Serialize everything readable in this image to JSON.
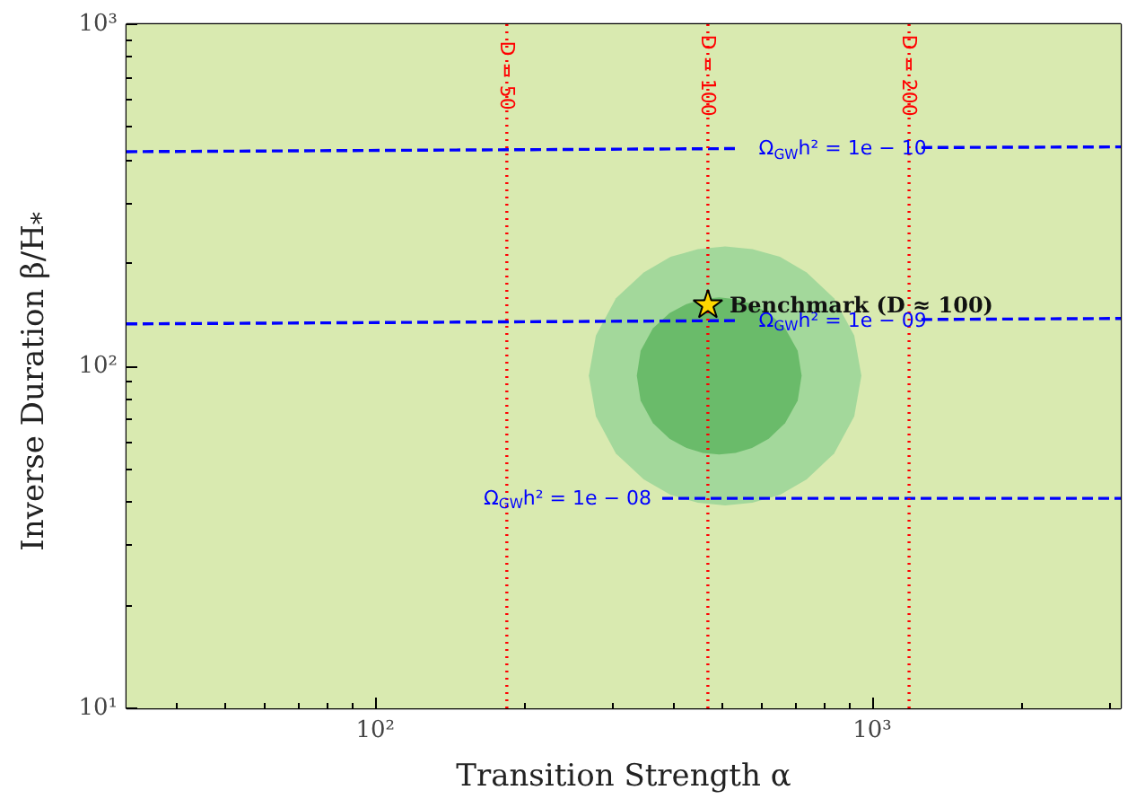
{
  "chart_data": {
    "type": "line",
    "xlabel": "Transition Strength α",
    "ylabel": "Inverse Duration β/H$_{*}$",
    "log": "xy",
    "xlim": [
      31.6,
      3162
    ],
    "ylim": [
      10,
      1000
    ],
    "xticks": [
      {
        "value": 40,
        "label": null
      },
      {
        "value": 50,
        "label": null
      },
      {
        "value": 60,
        "label": null
      },
      {
        "value": 70,
        "label": null
      },
      {
        "value": 80,
        "label": null
      },
      {
        "value": 90,
        "label": null
      },
      {
        "value": 100,
        "label": "10²"
      },
      {
        "value": 200,
        "label": null
      },
      {
        "value": 300,
        "label": null
      },
      {
        "value": 400,
        "label": null
      },
      {
        "value": 500,
        "label": null
      },
      {
        "value": 600,
        "label": null
      },
      {
        "value": 700,
        "label": null
      },
      {
        "value": 800,
        "label": null
      },
      {
        "value": 900,
        "label": null
      },
      {
        "value": 1000,
        "label": "10³"
      },
      {
        "value": 2000,
        "label": null
      },
      {
        "value": 3000,
        "label": null
      }
    ],
    "yticks": [
      {
        "value": 10,
        "label": "10¹"
      },
      {
        "value": 20,
        "label": null
      },
      {
        "value": 30,
        "label": null
      },
      {
        "value": 40,
        "label": null
      },
      {
        "value": 50,
        "label": null
      },
      {
        "value": 60,
        "label": null
      },
      {
        "value": 70,
        "label": null
      },
      {
        "value": 80,
        "label": null
      },
      {
        "value": 90,
        "label": null
      },
      {
        "value": 100,
        "label": "10²"
      },
      {
        "value": 200,
        "label": null
      },
      {
        "value": 300,
        "label": null
      },
      {
        "value": 400,
        "label": null
      },
      {
        "value": 500,
        "label": null
      },
      {
        "value": 600,
        "label": null
      },
      {
        "value": 700,
        "label": null
      },
      {
        "value": 800,
        "label": null
      },
      {
        "value": 900,
        "label": null
      },
      {
        "value": 1000,
        "label": "10³"
      }
    ],
    "bands": [
      {
        "axis": "y",
        "from": 10,
        "to": 1000,
        "color": "#d9eab0"
      }
    ],
    "series": [
      {
        "type": "area",
        "color": "#a3d89b",
        "x": [
          269,
          278,
          305,
          347,
          393,
          446,
          506,
          574,
          652,
          738,
          838,
          920,
          951,
          920,
          838,
          738,
          652,
          574,
          506,
          446,
          393,
          347,
          305,
          278
        ],
        "values": [
          93.8,
          123,
          158,
          188,
          209,
          220,
          224,
          220,
          209,
          188,
          158,
          123,
          93.8,
          71.4,
          55.6,
          46.7,
          42.1,
          39.9,
          39.2,
          39.9,
          42.1,
          46.7,
          55.6,
          71.4
        ]
      },
      {
        "type": "area",
        "color": "#6abb6a",
        "x": [
          336,
          342,
          362,
          391,
          423,
          456,
          492,
          531,
          573,
          619,
          668,
          708,
          721,
          708,
          668,
          619,
          573,
          531,
          492,
          456,
          423,
          391,
          362,
          342
        ],
        "values": [
          93.8,
          111,
          129,
          143,
          152,
          157,
          159,
          157,
          152,
          143,
          129,
          111,
          93.8,
          79.4,
          68.2,
          61.4,
          57.7,
          55.8,
          55.2,
          55.8,
          57.7,
          61.4,
          68.2,
          79.4
        ]
      },
      {
        "name": "Ω$_{GW}$h² = 1e − 10",
        "color": "#0000ff",
        "line_style": "dashed",
        "x": [
          31.6,
          535,
          800,
          1256,
          3162
        ],
        "values": [
          424,
          433,
          null,
          436,
          438
        ]
      },
      {
        "name": "Ω$_{GW}$h² = 1e − 09",
        "color": "#0000ff",
        "line_style": "dashed",
        "x": [
          31.6,
          535,
          800,
          1256,
          3162
        ],
        "values": [
          133,
          136,
          null,
          137,
          138
        ]
      },
      {
        "name": "Ω$_{GW}$h² = 1e − 08",
        "color": "#0000ff",
        "line_style": "dashed",
        "x": [
          378,
          3162
        ],
        "values": [
          41.1,
          41.1
        ]
      },
      {
        "name": "D = 50",
        "color": "#ff0000",
        "line_style": "dotted",
        "x": [
          184,
          184
        ],
        "values": [
          10,
          1000
        ]
      },
      {
        "name": "D = 100",
        "color": "#ff0000",
        "line_style": "dotted",
        "x": [
          467,
          467
        ],
        "values": [
          10,
          1000
        ]
      },
      {
        "name": "D = 200",
        "color": "#ff0000",
        "line_style": "dotted",
        "x": [
          1186,
          1186
        ],
        "values": [
          10,
          1000
        ]
      },
      {
        "type": "scatter",
        "name": "Benchmark (D ≈ 100)",
        "marker": "star",
        "color": "#ffd700",
        "x": [
          467
        ],
        "values": [
          151
        ]
      }
    ]
  }
}
